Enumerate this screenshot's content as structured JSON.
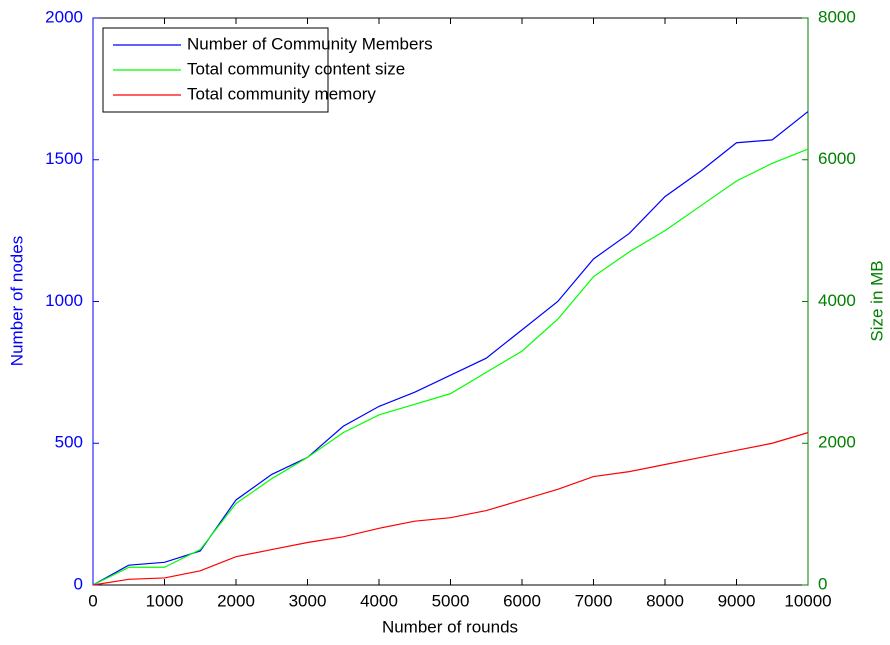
{
  "chart_data": {
    "type": "line",
    "xlabel": "Number of rounds",
    "ylabel": "Number of nodes",
    "y2label": "Size in MB",
    "x": [
      0,
      500,
      1000,
      1500,
      2000,
      2500,
      3000,
      3500,
      4000,
      4500,
      5000,
      5500,
      6000,
      6500,
      7000,
      7500,
      8000,
      8500,
      9000,
      9500,
      10000
    ],
    "series": [
      {
        "name": "Number of Community Members",
        "color": "#0000ff",
        "axis": "y",
        "values": [
          0,
          70,
          80,
          120,
          300,
          390,
          450,
          560,
          630,
          680,
          740,
          800,
          900,
          1000,
          1150,
          1240,
          1370,
          1460,
          1560,
          1570,
          1670
        ]
      },
      {
        "name": "Total community content size",
        "color": "#00ff00",
        "axis": "y2",
        "values": [
          0,
          250,
          250,
          500,
          1150,
          1500,
          1800,
          2150,
          2400,
          2550,
          2700,
          3000,
          3300,
          3750,
          4350,
          4700,
          5000,
          5350,
          5700,
          5950,
          6150
        ]
      },
      {
        "name": "Total community memory",
        "color": "#ff0000",
        "axis": "y2",
        "values": [
          0,
          80,
          100,
          200,
          400,
          500,
          600,
          680,
          800,
          900,
          950,
          1050,
          1200,
          1350,
          1530,
          1600,
          1700,
          1800,
          1900,
          2000,
          2150
        ]
      }
    ],
    "xlim": [
      0,
      10000
    ],
    "xticks": [
      0,
      1000,
      2000,
      3000,
      4000,
      5000,
      6000,
      7000,
      8000,
      9000,
      10000
    ],
    "ylim": [
      0,
      2000
    ],
    "yticks": [
      0,
      500,
      1000,
      1500,
      2000
    ],
    "y2lim": [
      0,
      8000
    ],
    "y2ticks": [
      0,
      2000,
      4000,
      6000,
      8000
    ],
    "ycolor": "#0000ff",
    "y2color": "#008000",
    "legend": "upper left"
  }
}
